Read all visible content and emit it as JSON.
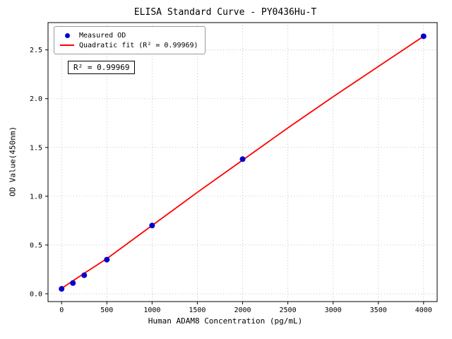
{
  "chart_data": {
    "type": "scatter",
    "title": "ELISA Standard Curve - PY0436Hu-T",
    "xlabel": "Human ADAM8 Concentration (pg/mL)",
    "ylabel": "OD Value(450nm)",
    "xlim": [
      -150,
      4150
    ],
    "ylim": [
      -0.08,
      2.78
    ],
    "xticks": [
      0,
      500,
      1000,
      1500,
      2000,
      2500,
      3000,
      3500,
      4000
    ],
    "yticks": [
      0.0,
      0.5,
      1.0,
      1.5,
      2.0,
      2.5
    ],
    "grid": true,
    "annotation": "R² = 0.99969",
    "legend": {
      "position": "upper-left",
      "entries": [
        {
          "label": "Measured OD",
          "type": "marker",
          "color": "#0000cd"
        },
        {
          "label": "Quadratic fit (R² = 0.99969)",
          "type": "line",
          "color": "#ff0000"
        }
      ]
    },
    "series": [
      {
        "name": "Quadratic fit",
        "type": "line",
        "color": "#ff0000",
        "points": [
          [
            0,
            0.055
          ],
          [
            250,
            0.21
          ],
          [
            500,
            0.36
          ],
          [
            1000,
            0.7
          ],
          [
            1500,
            1.04
          ],
          [
            2000,
            1.37
          ],
          [
            2500,
            1.7
          ],
          [
            3000,
            2.02
          ],
          [
            3500,
            2.33
          ],
          [
            4000,
            2.64
          ]
        ]
      },
      {
        "name": "Measured OD",
        "type": "scatter",
        "color": "#0000cd",
        "points": [
          [
            0,
            0.05
          ],
          [
            125,
            0.11
          ],
          [
            250,
            0.19
          ],
          [
            500,
            0.35
          ],
          [
            1000,
            0.7
          ],
          [
            2000,
            1.38
          ],
          [
            4000,
            2.64
          ]
        ]
      }
    ]
  }
}
